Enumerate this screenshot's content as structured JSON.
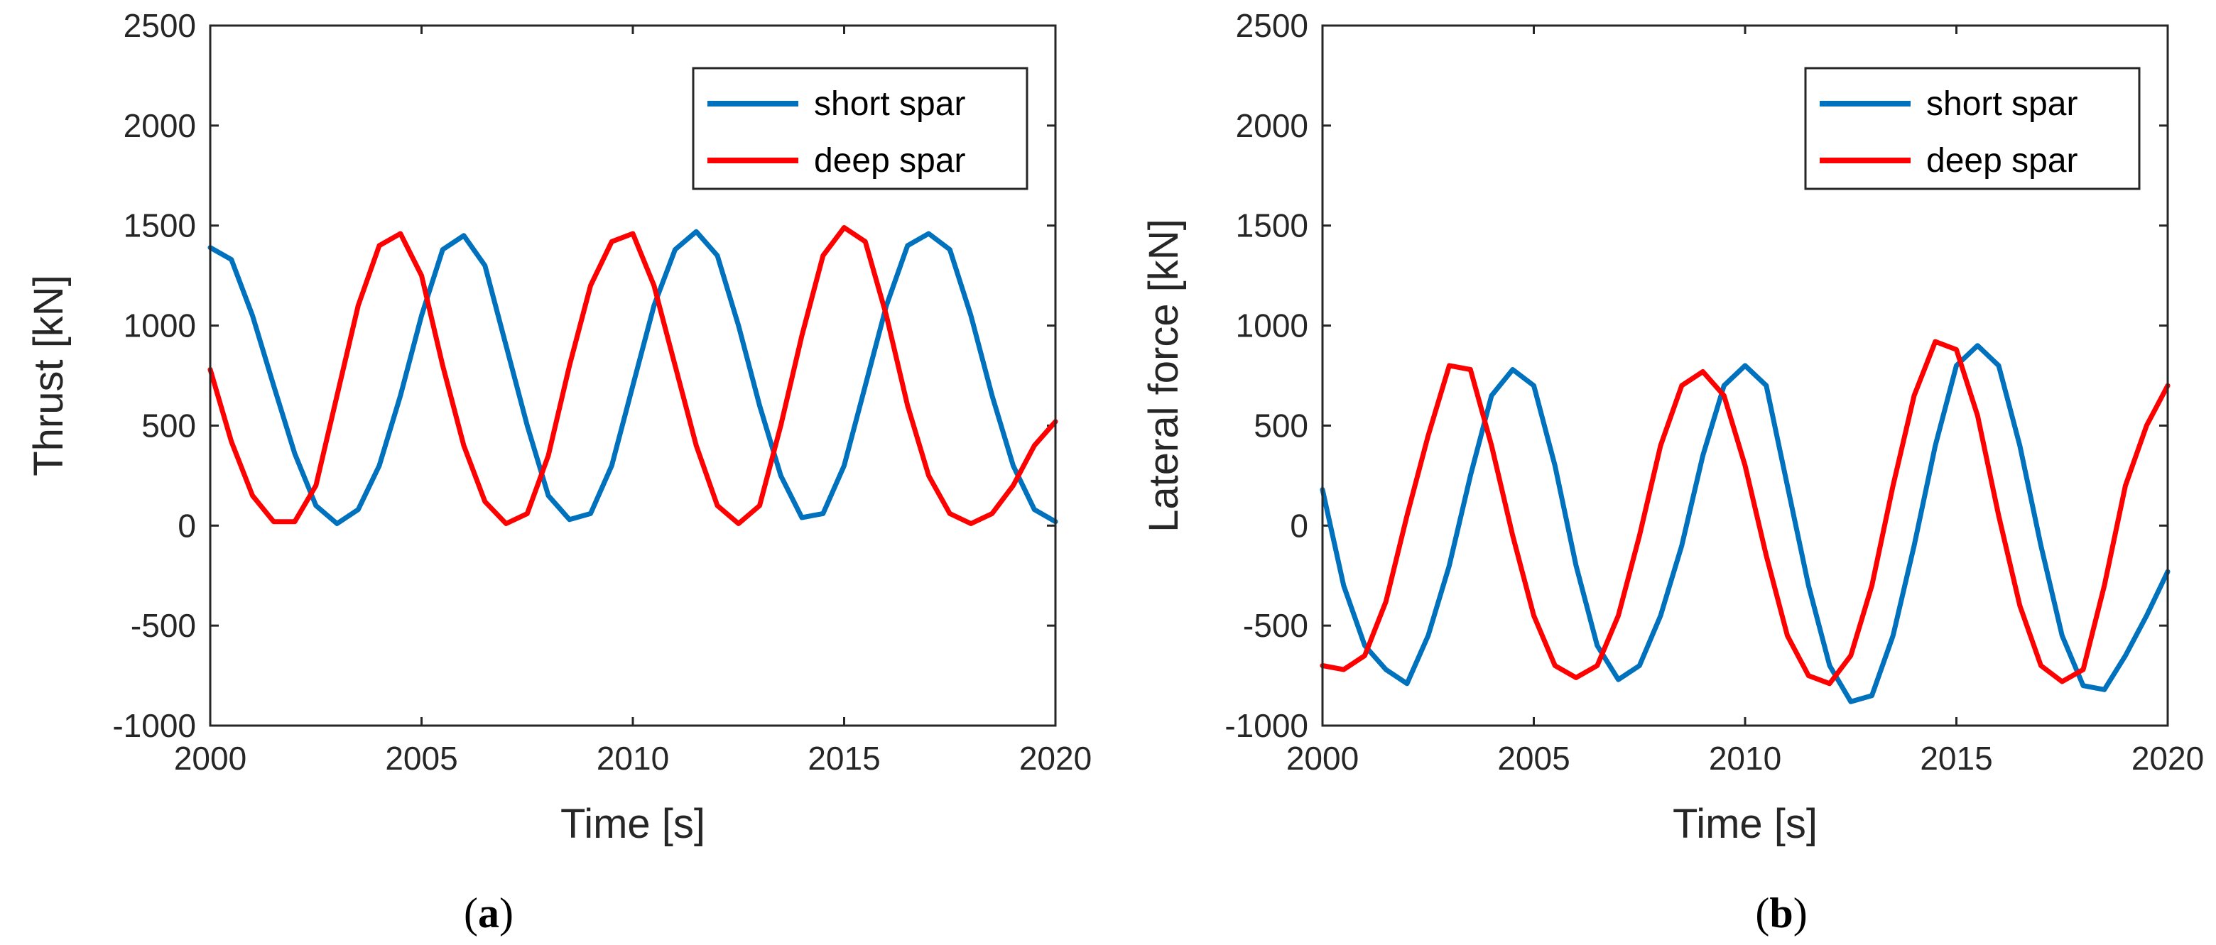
{
  "colors": {
    "short_spar": "#0072BD",
    "deep_spar": "#FF0000",
    "axis": "#262626"
  },
  "chart_data": [
    {
      "type": "line",
      "panel_label": "(a)",
      "panel_letter": "a",
      "xlabel": "Time [s]",
      "ylabel": "Thrust [kN]",
      "xlim": [
        2000,
        2020
      ],
      "ylim": [
        -1000,
        2500
      ],
      "xticks": [
        2000,
        2005,
        2010,
        2015,
        2020
      ],
      "yticks": [
        -1000,
        -500,
        0,
        500,
        1000,
        1500,
        2000,
        2500
      ],
      "legend": {
        "location": "top-right",
        "entries": [
          "short spar",
          "deep spar"
        ]
      },
      "series": [
        {
          "name": "short spar",
          "x": [
            2000,
            2000.5,
            2001,
            2001.5,
            2002,
            2002.5,
            2003,
            2003.5,
            2004,
            2004.5,
            2005,
            2005.5,
            2006,
            2006.5,
            2007,
            2007.5,
            2008,
            2008.5,
            2009,
            2009.5,
            2010,
            2010.5,
            2011,
            2011.5,
            2012,
            2012.5,
            2013,
            2013.5,
            2014,
            2014.5,
            2015,
            2015.5,
            2016,
            2016.5,
            2017,
            2017.5,
            2018,
            2018.5,
            2019,
            2019.5,
            2020
          ],
          "y": [
            1390,
            1330,
            1050,
            700,
            360,
            100,
            10,
            80,
            300,
            650,
            1050,
            1380,
            1450,
            1300,
            900,
            500,
            150,
            30,
            60,
            300,
            700,
            1100,
            1380,
            1470,
            1350,
            1000,
            600,
            250,
            40,
            60,
            300,
            700,
            1100,
            1400,
            1460,
            1380,
            1050,
            650,
            300,
            80,
            20
          ]
        },
        {
          "name": "deep spar",
          "x": [
            2000,
            2000.5,
            2001,
            2001.5,
            2002,
            2002.5,
            2003,
            2003.5,
            2004,
            2004.5,
            2005,
            2005.5,
            2006,
            2006.5,
            2007,
            2007.5,
            2008,
            2008.5,
            2009,
            2009.5,
            2010,
            2010.5,
            2011,
            2011.5,
            2012,
            2012.5,
            2013,
            2013.5,
            2014,
            2014.5,
            2015,
            2015.5,
            2016,
            2016.5,
            2017,
            2017.5,
            2018,
            2018.5,
            2019,
            2019.5,
            2020
          ],
          "y": [
            780,
            420,
            150,
            20,
            20,
            200,
            650,
            1100,
            1400,
            1460,
            1250,
            800,
            400,
            120,
            10,
            60,
            350,
            800,
            1200,
            1420,
            1460,
            1200,
            800,
            400,
            100,
            10,
            100,
            500,
            950,
            1350,
            1490,
            1420,
            1050,
            600,
            250,
            60,
            10,
            60,
            200,
            400,
            520
          ]
        }
      ]
    },
    {
      "type": "line",
      "panel_label": "(b)",
      "panel_letter": "b",
      "xlabel": "Time [s]",
      "ylabel": "Lateral force [kN]",
      "xlim": [
        2000,
        2020
      ],
      "ylim": [
        -1000,
        2500
      ],
      "xticks": [
        2000,
        2005,
        2010,
        2015,
        2020
      ],
      "yticks": [
        -1000,
        -500,
        0,
        500,
        1000,
        1500,
        2000,
        2500
      ],
      "legend": {
        "location": "top-right",
        "entries": [
          "short spar",
          "deep spar"
        ]
      },
      "series": [
        {
          "name": "short spar",
          "x": [
            2000,
            2000.5,
            2001,
            2001.5,
            2002,
            2002.5,
            2003,
            2003.5,
            2004,
            2004.5,
            2005,
            2005.5,
            2006,
            2006.5,
            2007,
            2007.5,
            2008,
            2008.5,
            2009,
            2009.5,
            2010,
            2010.5,
            2011,
            2011.5,
            2012,
            2012.5,
            2013,
            2013.5,
            2014,
            2014.5,
            2015,
            2015.5,
            2016,
            2016.5,
            2017,
            2017.5,
            2018,
            2018.5,
            2019,
            2019.5,
            2020
          ],
          "y": [
            180,
            -300,
            -600,
            -720,
            -790,
            -550,
            -200,
            250,
            650,
            780,
            700,
            300,
            -200,
            -600,
            -770,
            -700,
            -450,
            -100,
            350,
            700,
            800,
            700,
            200,
            -300,
            -700,
            -880,
            -850,
            -550,
            -100,
            400,
            800,
            900,
            800,
            400,
            -100,
            -550,
            -800,
            -820,
            -650,
            -450,
            -230
          ]
        },
        {
          "name": "deep spar",
          "x": [
            2000,
            2000.5,
            2001,
            2001.5,
            2002,
            2002.5,
            2003,
            2003.5,
            2004,
            2004.5,
            2005,
            2005.5,
            2006,
            2006.5,
            2007,
            2007.5,
            2008,
            2008.5,
            2009,
            2009.5,
            2010,
            2010.5,
            2011,
            2011.5,
            2012,
            2012.5,
            2013,
            2013.5,
            2014,
            2014.5,
            2015,
            2015.5,
            2016,
            2016.5,
            2017,
            2017.5,
            2018,
            2018.5,
            2019,
            2019.5,
            2020
          ],
          "y": [
            -700,
            -720,
            -650,
            -380,
            50,
            450,
            800,
            780,
            400,
            -50,
            -450,
            -700,
            -760,
            -700,
            -450,
            -50,
            400,
            700,
            770,
            650,
            300,
            -150,
            -550,
            -750,
            -790,
            -650,
            -300,
            200,
            650,
            920,
            880,
            550,
            50,
            -400,
            -700,
            -780,
            -720,
            -300,
            200,
            500,
            700
          ]
        }
      ]
    }
  ]
}
